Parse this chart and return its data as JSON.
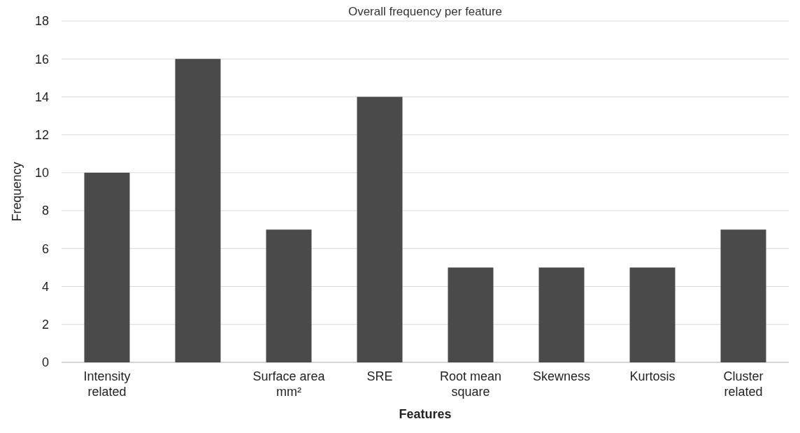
{
  "chart_data": {
    "type": "bar",
    "title": "Overall frequency per feature",
    "xlabel": "Features",
    "ylabel": "Frequency",
    "categories": [
      "Intensity related",
      null,
      "Surface area mm²",
      "SRE",
      "Root mean square",
      "Skewness",
      "Kurtosis",
      "Cluster related"
    ],
    "values": [
      10,
      16,
      7,
      14,
      5,
      5,
      5,
      7
    ],
    "color": "#4a4a4a",
    "ylim": [
      0,
      18
    ],
    "yticks": [
      0,
      2,
      4,
      6,
      8,
      10,
      12,
      14,
      16,
      18
    ],
    "grid": "y"
  }
}
